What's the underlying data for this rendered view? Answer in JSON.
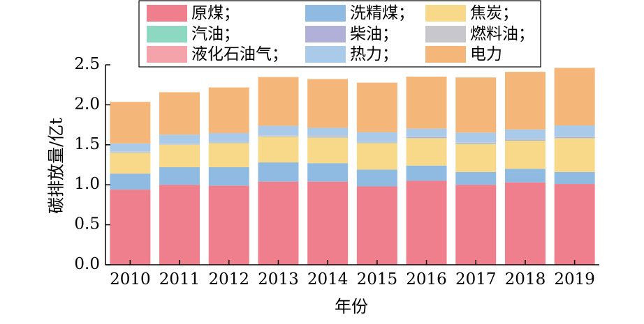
{
  "chart_data": {
    "type": "bar",
    "stacked": true,
    "categories": [
      "2010",
      "2011",
      "2012",
      "2013",
      "2014",
      "2015",
      "2016",
      "2017",
      "2018",
      "2019"
    ],
    "xlabel": "年份",
    "ylabel": "碳排放量/亿t",
    "ylim": [
      0,
      2.5
    ],
    "yticks": [
      "0.0",
      "0.5",
      "1.0",
      "1.5",
      "2.0",
      "2.5"
    ],
    "grid": false,
    "legend_position": "top",
    "series": [
      {
        "name": "原煤；",
        "color": "#f07f8d",
        "values": [
          0.94,
          1.0,
          0.99,
          1.04,
          1.04,
          0.98,
          1.05,
          1.0,
          1.03,
          1.01
        ]
      },
      {
        "name": "洗精煤；",
        "color": "#8fbbe3",
        "values": [
          0.2,
          0.22,
          0.23,
          0.24,
          0.23,
          0.21,
          0.19,
          0.16,
          0.17,
          0.15
        ]
      },
      {
        "name": "焦炭；",
        "color": "#f8d98a",
        "values": [
          0.26,
          0.28,
          0.3,
          0.32,
          0.32,
          0.33,
          0.34,
          0.35,
          0.35,
          0.42
        ]
      },
      {
        "name": "汽油；",
        "color": "#8dd8c0",
        "values": [
          0.005,
          0.005,
          0.005,
          0.005,
          0.005,
          0.005,
          0.005,
          0.005,
          0.005,
          0.005
        ]
      },
      {
        "name": "柴油；",
        "color": "#b0b0d8",
        "values": [
          0.005,
          0.005,
          0.005,
          0.005,
          0.01,
          0.005,
          0.01,
          0.01,
          0.01,
          0.01
        ]
      },
      {
        "name": "燃料油；",
        "color": "#c8c8cc",
        "values": [
          0.005,
          0.005,
          0.005,
          0.005,
          0.005,
          0.005,
          0.005,
          0.005,
          0.005,
          0.005
        ]
      },
      {
        "name": "液化石油气；",
        "color": "#f5a3aa",
        "values": [
          0.002,
          0.002,
          0.002,
          0.002,
          0.002,
          0.002,
          0.002,
          0.002,
          0.002,
          0.002
        ]
      },
      {
        "name": "热力；",
        "color": "#a9cbe9",
        "values": [
          0.1,
          0.11,
          0.11,
          0.12,
          0.1,
          0.12,
          0.1,
          0.12,
          0.12,
          0.14
        ]
      },
      {
        "name": "电力",
        "color": "#f5b67a",
        "values": [
          0.52,
          0.53,
          0.57,
          0.61,
          0.61,
          0.62,
          0.65,
          0.69,
          0.72,
          0.72
        ]
      }
    ]
  }
}
